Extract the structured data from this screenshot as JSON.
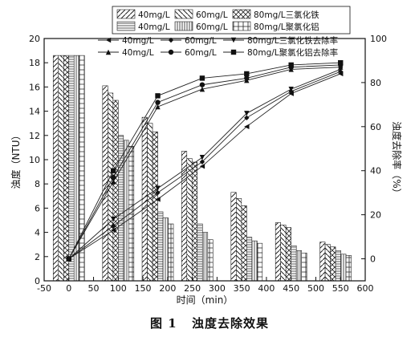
{
  "caption": {
    "label": "图 1",
    "title": "浊度去除效果"
  },
  "chart_data": {
    "type": "bar+line",
    "xlabel": "时间（min）",
    "ylabel_left": "浊度（NTU）",
    "ylabel_right": "浊度去除率（%）",
    "xlim": [
      -50,
      600
    ],
    "ylim_left": [
      0,
      20
    ],
    "ylim_right": [
      -10,
      100
    ],
    "x_ticks": [
      -50,
      0,
      50,
      100,
      150,
      200,
      250,
      300,
      350,
      400,
      450,
      500,
      550,
      600
    ],
    "y_ticks_left": [
      0,
      2,
      4,
      6,
      8,
      10,
      12,
      14,
      16,
      18,
      20
    ],
    "y_ticks_right": [
      0,
      20,
      40,
      60,
      80,
      100
    ],
    "grid": false,
    "bar_legend": [
      "40mg/L",
      "60mg/L",
      "80mg/L三氯化铁",
      "40mg/L",
      "60mg/L",
      "80mg/L聚氯化铝"
    ],
    "line_legend": [
      "40mg/L",
      "60mg/L",
      "80mg/L三氯化铁去除率",
      "40mg/L",
      "60mg/L",
      "80mg/L聚氯化铝去除率"
    ],
    "bar_groups_x": [
      0,
      100,
      180,
      260,
      360,
      450,
      540
    ],
    "turbidity_series": [
      {
        "values": [
          18.6,
          16.1,
          13.5,
          10.7,
          7.3,
          4.8,
          3.2
        ]
      },
      {
        "values": [
          18.6,
          15.5,
          13.0,
          10.1,
          6.8,
          4.6,
          3.0
        ]
      },
      {
        "values": [
          18.6,
          14.9,
          12.3,
          9.8,
          6.2,
          4.4,
          2.8
        ]
      },
      {
        "values": [
          18.6,
          12.0,
          5.7,
          4.7,
          3.6,
          2.9,
          2.5
        ]
      },
      {
        "values": [
          18.6,
          11.6,
          5.2,
          4.0,
          3.3,
          2.5,
          2.2
        ]
      },
      {
        "values": [
          18.6,
          11.1,
          4.7,
          3.4,
          3.1,
          2.3,
          2.1
        ]
      }
    ],
    "removal_x": [
      0,
      90,
      180,
      270,
      360,
      450,
      550
    ],
    "removal_series": [
      {
        "values": [
          0,
          13,
          27,
          42,
          60,
          75,
          84
        ]
      },
      {
        "values": [
          0,
          15,
          30,
          44,
          64,
          76,
          85
        ]
      },
      {
        "values": [
          0,
          18,
          32,
          46,
          66,
          77,
          86
        ]
      },
      {
        "values": [
          0,
          35,
          69,
          77,
          81,
          86,
          87
        ]
      },
      {
        "values": [
          0,
          37,
          71,
          79,
          82,
          87,
          88
        ]
      },
      {
        "values": [
          0,
          40,
          74,
          82,
          84,
          88,
          89
        ]
      }
    ]
  }
}
